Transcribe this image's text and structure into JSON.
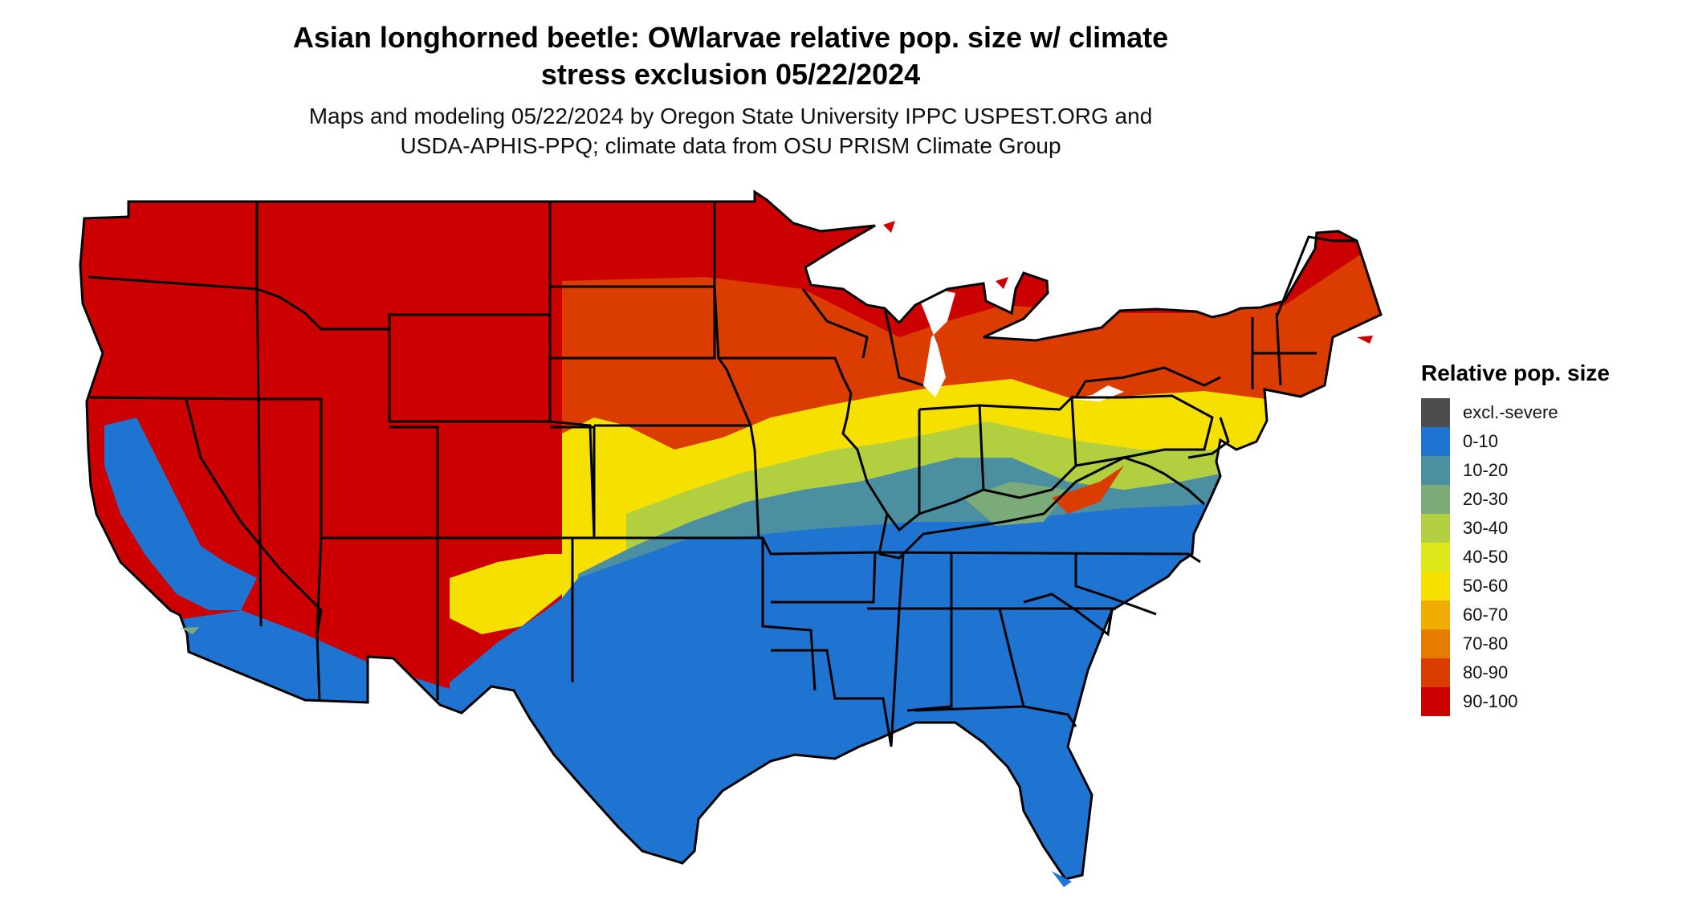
{
  "title_line1": "Asian longhorned beetle: OWlarvae relative pop. size w/ climate",
  "title_line2": "stress exclusion 05/22/2024",
  "subtitle_line1": "Maps and modeling 05/22/2024 by Oregon State University IPPC USPEST.ORG and",
  "subtitle_line2": "USDA-APHIS-PPQ; climate data from OSU PRISM Climate Group",
  "legend": {
    "title": "Relative pop. size",
    "items": [
      {
        "label": "excl.-severe",
        "color": "#4d4d4d"
      },
      {
        "label": "0-10",
        "color": "#1f74d1"
      },
      {
        "label": "10-20",
        "color": "#4c8fa0"
      },
      {
        "label": "20-30",
        "color": "#7aab78"
      },
      {
        "label": "30-40",
        "color": "#b2cf3f"
      },
      {
        "label": "40-50",
        "color": "#dde81a"
      },
      {
        "label": "50-60",
        "color": "#f5e000"
      },
      {
        "label": "60-70",
        "color": "#f0ad00"
      },
      {
        "label": "70-80",
        "color": "#e57c00"
      },
      {
        "label": "80-90",
        "color": "#db3d00"
      },
      {
        "label": "90-100",
        "color": "#cc0000"
      }
    ]
  },
  "colors": {
    "border": "#000000",
    "background": "#ffffff"
  }
}
